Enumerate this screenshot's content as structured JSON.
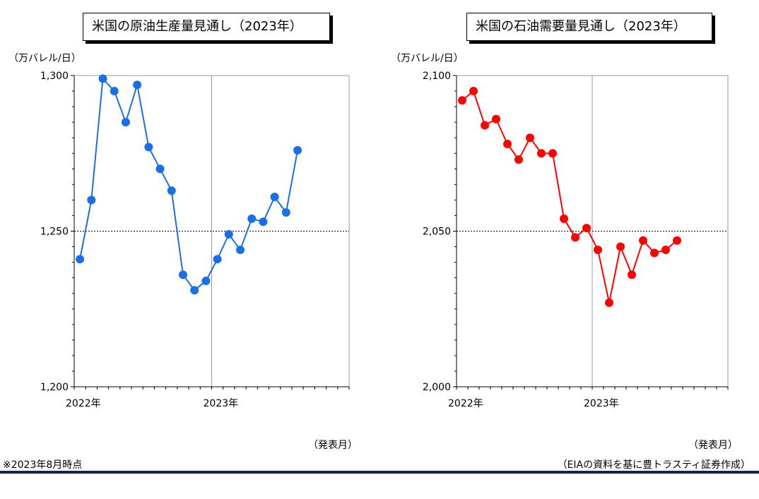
{
  "footnote": "※2023年8月時点",
  "source": "（EIAの資料を基に豊トラスティ証券作成）",
  "colors": {
    "left_series": "#1a6fe8",
    "right_series": "#ff0000",
    "rule": "#0b2454"
  },
  "chart_data": [
    {
      "type": "line",
      "title": "米国の原油生産量見通し（2023年）",
      "ylabel": "（万バレル/日）",
      "xlabel": "（発表月）",
      "ylim": [
        1200,
        1300
      ],
      "yticks": [
        1200,
        1250,
        1300
      ],
      "ytick_labels": [
        "1,200",
        "1,250",
        "1,300"
      ],
      "xtick_labels": [
        "2022年",
        "2023年"
      ],
      "reference_line": 1250,
      "grid": false,
      "x": [
        "2022-01",
        "2022-02",
        "2022-03",
        "2022-04",
        "2022-05",
        "2022-06",
        "2022-07",
        "2022-08",
        "2022-09",
        "2022-10",
        "2022-11",
        "2022-12",
        "2023-01",
        "2023-02",
        "2023-03",
        "2023-04",
        "2023-05",
        "2023-06",
        "2023-07",
        "2023-08"
      ],
      "series": [
        {
          "values": [
            1241,
            1260,
            1299,
            1295,
            1285,
            1297,
            1277,
            1270,
            1263,
            1236,
            1231,
            1234,
            1241,
            1249,
            1244,
            1254,
            1253,
            1261,
            1256,
            1276
          ]
        }
      ]
    },
    {
      "type": "line",
      "title": "米国の石油需要量見通し（2023年）",
      "ylabel": "（万バレル/日）",
      "xlabel": "（発表月）",
      "ylim": [
        2000,
        2100
      ],
      "yticks": [
        2000,
        2050,
        2100
      ],
      "ytick_labels": [
        "2,000",
        "2,050",
        "2,100"
      ],
      "xtick_labels": [
        "2022年",
        "2023年"
      ],
      "reference_line": 2050,
      "grid": false,
      "x": [
        "2022-01",
        "2022-02",
        "2022-03",
        "2022-04",
        "2022-05",
        "2022-06",
        "2022-07",
        "2022-08",
        "2022-09",
        "2022-10",
        "2022-11",
        "2022-12",
        "2023-01",
        "2023-02",
        "2023-03",
        "2023-04",
        "2023-05",
        "2023-06",
        "2023-07",
        "2023-08"
      ],
      "series": [
        {
          "values": [
            2092,
            2095,
            2084,
            2086,
            2078,
            2073,
            2080,
            2075,
            2075,
            2054,
            2048,
            2051,
            2044,
            2027,
            2045,
            2036,
            2047,
            2043,
            2044,
            2047
          ]
        }
      ]
    }
  ]
}
